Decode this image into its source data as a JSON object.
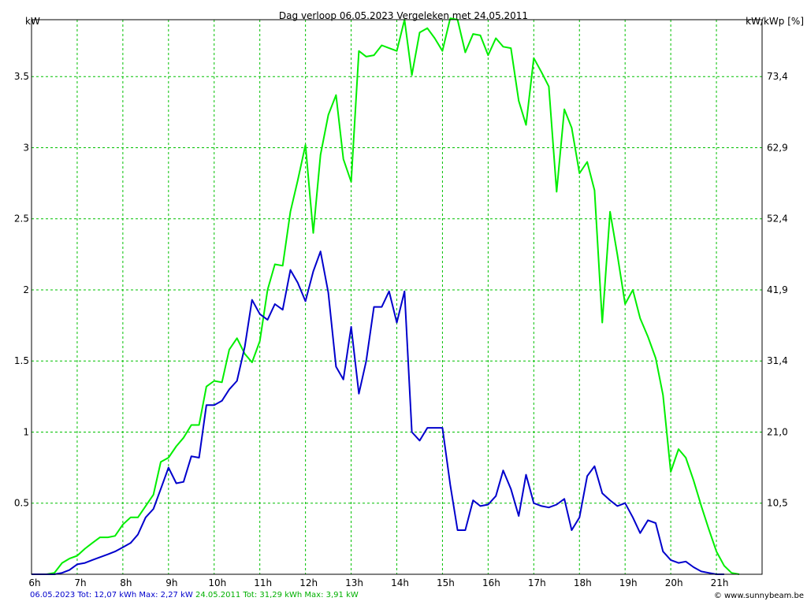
{
  "chart_data": {
    "type": "line",
    "title": "Dag  verloop 06.05.2023   Vergeleken met 24.05.2011",
    "ylabel_left": "kW",
    "ylabel_right": "kW/kWp [%]",
    "x_ticks": [
      "6h",
      "7h",
      "8h",
      "9h",
      "10h",
      "11h",
      "12h",
      "13h",
      "14h",
      "15h",
      "16h",
      "17h",
      "18h",
      "19h",
      "20h",
      "21h"
    ],
    "x_range": [
      6,
      22
    ],
    "y_range": [
      0,
      3.9
    ],
    "y_ticks_left": [
      "0.5",
      "1",
      "1.5",
      "2",
      "2.5",
      "3",
      "3.5"
    ],
    "y_ticks_right": [
      "10,5",
      "21,0",
      "31,4",
      "41,9",
      "52,4",
      "62,9",
      "73,4"
    ],
    "grid": true,
    "colors": {
      "frame": "#000000",
      "grid": "#00c000",
      "series_2023": "#0000cc",
      "series_2011": "#00ee00"
    },
    "series": [
      {
        "name": "06.05.2023",
        "color": "#0000cc",
        "x": [
          6.0,
          6.17,
          6.33,
          6.5,
          6.67,
          6.83,
          7.0,
          7.17,
          7.33,
          7.5,
          7.67,
          7.83,
          8.0,
          8.17,
          8.33,
          8.5,
          8.67,
          8.83,
          9.0,
          9.17,
          9.33,
          9.5,
          9.67,
          9.83,
          10.0,
          10.17,
          10.33,
          10.5,
          10.67,
          10.83,
          11.0,
          11.17,
          11.33,
          11.5,
          11.67,
          11.83,
          12.0,
          12.17,
          12.33,
          12.5,
          12.67,
          12.83,
          13.0,
          13.17,
          13.33,
          13.5,
          13.67,
          13.83,
          14.0,
          14.17,
          14.33,
          14.5,
          14.67,
          14.83,
          15.0,
          15.17,
          15.33,
          15.5,
          15.67,
          15.83,
          16.0,
          16.17,
          16.33,
          16.5,
          16.67,
          16.83,
          17.0,
          17.17,
          17.33,
          17.5,
          17.67,
          17.83,
          18.0,
          18.17,
          18.33,
          18.5,
          18.67,
          18.83,
          19.0,
          19.17,
          19.33,
          19.5,
          19.67,
          19.83,
          20.0,
          20.17,
          20.33,
          20.5,
          20.67,
          20.83,
          21.0,
          21.17
        ],
        "values": [
          0,
          0,
          0,
          0,
          0.01,
          0.03,
          0.07,
          0.08,
          0.1,
          0.12,
          0.14,
          0.16,
          0.19,
          0.22,
          0.28,
          0.4,
          0.46,
          0.6,
          0.75,
          0.64,
          0.65,
          0.83,
          0.82,
          1.19,
          1.19,
          1.22,
          1.3,
          1.36,
          1.6,
          1.93,
          1.83,
          1.79,
          1.9,
          1.86,
          2.14,
          2.05,
          1.92,
          2.13,
          2.27,
          1.98,
          1.46,
          1.37,
          1.74,
          1.27,
          1.5,
          1.88,
          1.88,
          1.99,
          1.77,
          1.99,
          1.0,
          0.94,
          1.03,
          1.03,
          1.03,
          0.63,
          0.31,
          0.31,
          0.52,
          0.48,
          0.49,
          0.55,
          0.73,
          0.6,
          0.41,
          0.7,
          0.5,
          0.48,
          0.47,
          0.49,
          0.53,
          0.31,
          0.4,
          0.69,
          0.76,
          0.57,
          0.52,
          0.48,
          0.5,
          0.4,
          0.29,
          0.38,
          0.36,
          0.16,
          0.1,
          0.08,
          0.09,
          0.05,
          0.02,
          0.01,
          0,
          0
        ]
      },
      {
        "name": "24.05.2011",
        "color": "#00ee00",
        "x": [
          6.0,
          6.17,
          6.33,
          6.5,
          6.67,
          6.83,
          7.0,
          7.17,
          7.33,
          7.5,
          7.67,
          7.83,
          8.0,
          8.17,
          8.33,
          8.5,
          8.67,
          8.83,
          9.0,
          9.17,
          9.33,
          9.5,
          9.67,
          9.83,
          10.0,
          10.17,
          10.33,
          10.5,
          10.67,
          10.83,
          11.0,
          11.17,
          11.33,
          11.5,
          11.67,
          11.83,
          12.0,
          12.17,
          12.33,
          12.5,
          12.67,
          12.83,
          13.0,
          13.17,
          13.33,
          13.5,
          13.67,
          13.83,
          14.0,
          14.17,
          14.33,
          14.5,
          14.67,
          14.83,
          15.0,
          15.17,
          15.33,
          15.5,
          15.67,
          15.83,
          16.0,
          16.17,
          16.33,
          16.5,
          16.67,
          16.83,
          17.0,
          17.17,
          17.33,
          17.5,
          17.67,
          17.83,
          18.0,
          18.17,
          18.33,
          18.5,
          18.67,
          18.83,
          19.0,
          19.17,
          19.33,
          19.5,
          19.67,
          19.83,
          20.0,
          20.17,
          20.33,
          20.5,
          20.67,
          20.83,
          21.0,
          21.17,
          21.33,
          21.5
        ],
        "values": [
          0,
          0,
          0,
          0.01,
          0.08,
          0.11,
          0.13,
          0.18,
          0.22,
          0.26,
          0.26,
          0.27,
          0.35,
          0.4,
          0.4,
          0.48,
          0.56,
          0.79,
          0.82,
          0.9,
          0.96,
          1.05,
          1.05,
          1.32,
          1.36,
          1.35,
          1.58,
          1.66,
          1.55,
          1.49,
          1.64,
          2.0,
          2.18,
          2.17,
          2.55,
          2.77,
          3.02,
          2.4,
          2.95,
          3.23,
          3.37,
          2.92,
          2.76,
          3.68,
          3.64,
          3.65,
          3.72,
          3.7,
          3.68,
          3.9,
          3.51,
          3.81,
          3.84,
          3.77,
          3.68,
          3.91,
          3.9,
          3.67,
          3.8,
          3.79,
          3.65,
          3.77,
          3.71,
          3.7,
          3.33,
          3.16,
          3.63,
          3.53,
          3.43,
          2.69,
          3.27,
          3.14,
          2.82,
          2.9,
          2.7,
          1.77,
          2.55,
          2.25,
          1.9,
          2.0,
          1.8,
          1.67,
          1.52,
          1.26,
          0.72,
          0.88,
          0.82,
          0.66,
          0.48,
          0.32,
          0.16,
          0.06,
          0.01,
          0
        ]
      }
    ],
    "footer_2023": "06.05.2023 Tot: 12,07 kWh Max: 2,27 kW",
    "footer_2011": "24.05.2011 Tot: 31,29 kWh Max: 3,91 kW",
    "copyright": "www.sunnybeam.be"
  }
}
